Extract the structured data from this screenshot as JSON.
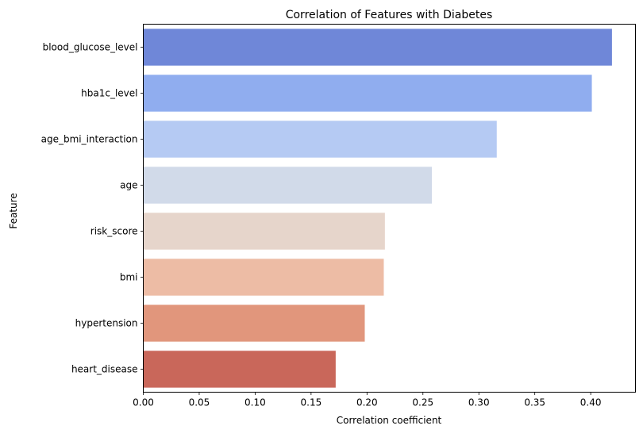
{
  "chart_data": {
    "type": "bar",
    "orientation": "horizontal",
    "title": "Correlation of Features with Diabetes",
    "xlabel": "Correlation coefficient",
    "ylabel": "Feature",
    "categories": [
      "blood_glucose_level",
      "hba1c_level",
      "age_bmi_interaction",
      "age",
      "risk_score",
      "bmi",
      "hypertension",
      "heart_disease"
    ],
    "values": [
      0.419,
      0.401,
      0.316,
      0.258,
      0.216,
      0.215,
      0.198,
      0.172
    ],
    "colors": [
      "#6f87d8",
      "#90adef",
      "#b5caf3",
      "#d1dae9",
      "#e6d5cb",
      "#edbca5",
      "#e1967c",
      "#c9675a"
    ],
    "xlim": [
      0,
      0.44
    ],
    "xticks": [
      "0.00",
      "0.05",
      "0.10",
      "0.15",
      "0.20",
      "0.25",
      "0.30",
      "0.35",
      "0.40"
    ],
    "grid": false,
    "legend": "none"
  }
}
